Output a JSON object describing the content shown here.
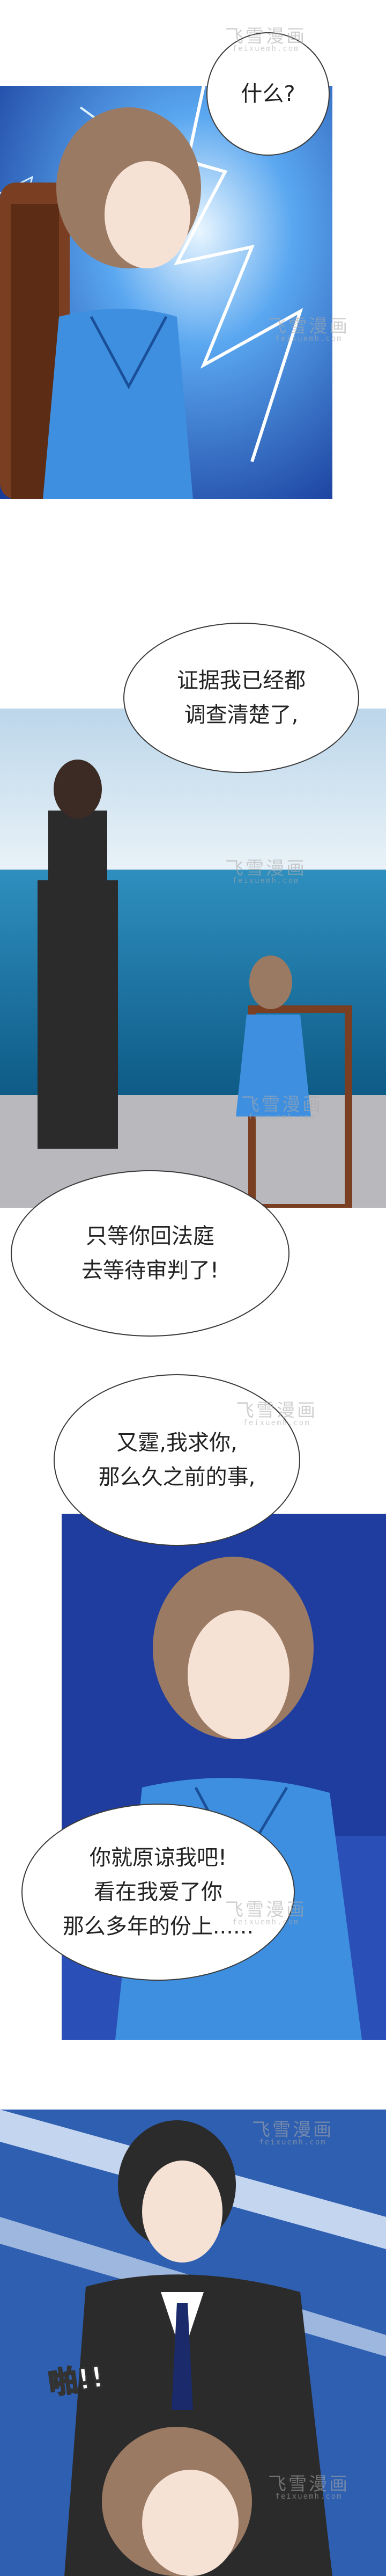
{
  "watermark": {
    "text": "飞雪漫画",
    "domain": "feixuemh.com"
  },
  "panels": [
    {
      "id": "p1",
      "bubbles": [
        {
          "lines": [
            "什么?"
          ]
        }
      ]
    },
    {
      "id": "p2",
      "bubbles": [
        {
          "lines": [
            "证据我已经都",
            "调查清楚了,"
          ]
        }
      ]
    },
    {
      "id": "p3",
      "bubbles": [
        {
          "lines": [
            "只等你回法庭",
            "去等待审判了!"
          ]
        }
      ]
    },
    {
      "id": "p4",
      "bubbles": [
        {
          "lines": [
            "又霆,我求你,",
            "那么久之前的事,"
          ]
        },
        {
          "lines": [
            "你就原谅我吧!",
            "看在我爱了你",
            "那么多年的份上......"
          ]
        }
      ]
    },
    {
      "id": "p5",
      "sfx": "啪!!"
    }
  ],
  "colors": {
    "ocean": "#1d6fa0",
    "dress": "#3f8fe0",
    "suit": "#2b2b2b",
    "sky": "#cfe3f2",
    "storm": "#1e3d9e"
  }
}
